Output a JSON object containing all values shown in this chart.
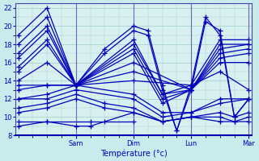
{
  "xlabel": "Température (°c)",
  "bg_color": "#c8ecec",
  "plot_bg_color": "#d8f0f0",
  "line_color": "#0000bb",
  "marker": "+",
  "markersize": 4,
  "linewidth": 0.9,
  "ylim": [
    8,
    22.5
  ],
  "yticks": [
    8,
    10,
    12,
    14,
    16,
    18,
    20,
    22
  ],
  "xlim": [
    -0.05,
    4.05
  ],
  "day_positions": [
    1.0,
    2.0,
    3.0,
    4.0
  ],
  "day_labels": [
    "Sam",
    "Dim",
    "Lun",
    "Mar"
  ],
  "grid_color": "#a0cccc",
  "series": [
    {
      "x": [
        0.0,
        0.5,
        1.0,
        1.5,
        2.0,
        2.25,
        2.5,
        2.75,
        3.0,
        3.25,
        3.5,
        3.75,
        4.0
      ],
      "y": [
        19.0,
        22.0,
        13.5,
        17.5,
        20.0,
        19.5,
        13.5,
        8.5,
        13.5,
        21.0,
        19.0,
        10.0,
        12.0
      ]
    },
    {
      "x": [
        0.0,
        0.5,
        1.0,
        1.5,
        2.0,
        2.25,
        2.5,
        2.75,
        3.0,
        3.25,
        3.5,
        3.75,
        4.0
      ],
      "y": [
        18.0,
        21.0,
        13.5,
        17.0,
        19.5,
        19.0,
        13.0,
        8.5,
        13.0,
        20.5,
        19.5,
        10.0,
        12.0
      ]
    },
    {
      "x": [
        0.0,
        0.5,
        1.0,
        2.0,
        2.5,
        3.0,
        3.5,
        4.0
      ],
      "y": [
        17.0,
        20.0,
        13.5,
        18.5,
        12.5,
        13.5,
        18.5,
        18.5
      ]
    },
    {
      "x": [
        0.0,
        0.5,
        1.0,
        2.0,
        2.5,
        3.0,
        3.5,
        4.0
      ],
      "y": [
        16.5,
        19.5,
        13.5,
        18.0,
        12.5,
        13.0,
        18.0,
        18.0
      ]
    },
    {
      "x": [
        0.0,
        0.5,
        1.0,
        2.0,
        2.5,
        3.0,
        3.5,
        4.0
      ],
      "y": [
        15.5,
        18.5,
        13.5,
        17.5,
        12.0,
        13.0,
        17.5,
        18.0
      ]
    },
    {
      "x": [
        0.0,
        0.5,
        1.0,
        2.0,
        2.5,
        3.0,
        3.5,
        4.0
      ],
      "y": [
        15.0,
        18.0,
        13.5,
        17.0,
        11.5,
        13.0,
        17.0,
        17.5
      ]
    },
    {
      "x": [
        0.0,
        0.5,
        1.0,
        2.0,
        3.0,
        3.5,
        4.0
      ],
      "y": [
        14.0,
        16.0,
        13.5,
        16.0,
        13.0,
        16.5,
        17.0
      ]
    },
    {
      "x": [
        0.0,
        0.5,
        1.0,
        2.0,
        3.0,
        3.5,
        4.0
      ],
      "y": [
        13.5,
        13.5,
        13.5,
        15.0,
        13.0,
        16.0,
        16.0
      ]
    },
    {
      "x": [
        0.0,
        0.5,
        1.0,
        2.0,
        3.0,
        3.5,
        4.0
      ],
      "y": [
        13.0,
        13.5,
        13.5,
        14.0,
        13.5,
        15.0,
        13.0
      ]
    },
    {
      "x": [
        0.0,
        0.5,
        1.0,
        2.0,
        2.5,
        3.0,
        3.5,
        4.0
      ],
      "y": [
        12.0,
        12.5,
        13.5,
        12.5,
        10.5,
        10.5,
        12.0,
        12.0
      ]
    },
    {
      "x": [
        0.0,
        0.5,
        1.0,
        2.0,
        2.5,
        3.0,
        3.5,
        4.0
      ],
      "y": [
        12.0,
        12.0,
        13.0,
        12.0,
        10.0,
        10.5,
        11.5,
        12.0
      ]
    },
    {
      "x": [
        0.0,
        0.5,
        1.0,
        1.5,
        2.0,
        2.5,
        3.0,
        3.5,
        3.75,
        4.0
      ],
      "y": [
        11.0,
        11.5,
        12.5,
        11.5,
        11.0,
        9.5,
        10.0,
        10.5,
        10.0,
        10.5
      ]
    },
    {
      "x": [
        0.0,
        0.5,
        1.0,
        1.5,
        2.0,
        2.5,
        3.0,
        3.5,
        3.75,
        4.0
      ],
      "y": [
        10.5,
        11.0,
        12.0,
        11.0,
        10.5,
        9.5,
        10.0,
        10.0,
        9.5,
        10.0
      ]
    },
    {
      "x": [
        0.0,
        0.5,
        1.0,
        1.25,
        1.5,
        2.0,
        2.5,
        3.0,
        3.5,
        3.75,
        4.0
      ],
      "y": [
        9.0,
        9.5,
        9.0,
        9.0,
        9.5,
        10.5,
        9.5,
        10.0,
        9.5,
        9.5,
        9.5
      ]
    },
    {
      "x": [
        0.0,
        0.5,
        1.25,
        2.0
      ],
      "y": [
        9.5,
        9.5,
        9.5,
        9.5
      ]
    }
  ]
}
